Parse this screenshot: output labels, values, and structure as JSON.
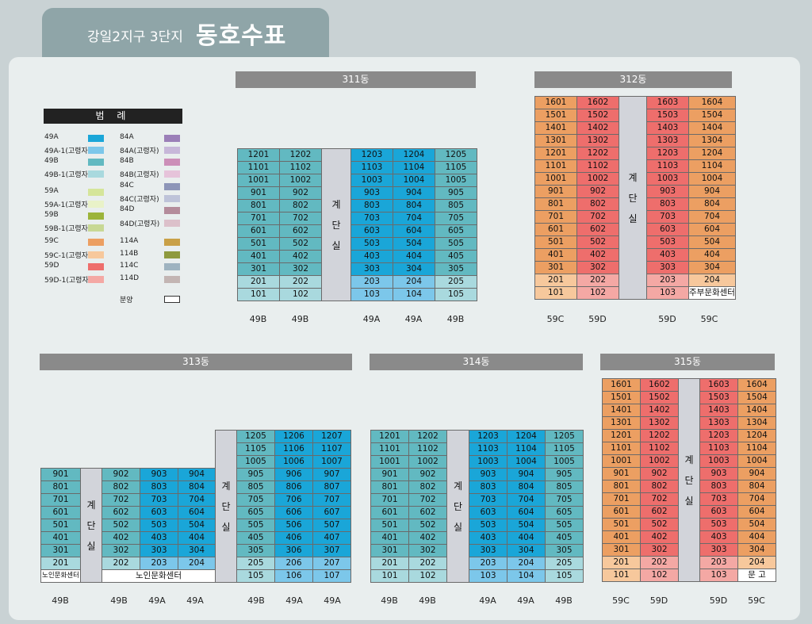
{
  "title": {
    "prefix": "강일2지구 3단지",
    "main": "동호수표"
  },
  "legend": {
    "header": "범   례",
    "left": [
      {
        "label": "49A",
        "color": "#1aa6d8"
      },
      {
        "label": "49A-1(고령자)",
        "color": "#7cc7ea"
      },
      {
        "label": "49B",
        "color": "#62b9c1"
      },
      {
        "label": "49B-1(고령자)",
        "color": "#a9d9de"
      },
      {
        "label": "59A",
        "color": "#d5e59a"
      },
      {
        "label": "59A-1(고령자)",
        "color": "#e9f2c8"
      },
      {
        "label": "59B",
        "color": "#9cb43a"
      },
      {
        "label": "59B-1(고령자)",
        "color": "#c8d894"
      },
      {
        "label": "59C",
        "color": "#ec9f62"
      },
      {
        "label": "59C-1(고령자)",
        "color": "#f7c89c"
      },
      {
        "label": "59D",
        "color": "#ee6e6c"
      },
      {
        "label": "59D-1(고령자)",
        "color": "#f4a8a4"
      }
    ],
    "right": [
      {
        "label": "84A",
        "color": "#9b7fb8"
      },
      {
        "label": "84A(고령자)",
        "color": "#c7b7d9"
      },
      {
        "label": "84B",
        "color": "#cc8fb8"
      },
      {
        "label": "84B(고령자)",
        "color": "#e6c3da"
      },
      {
        "label": "84C",
        "color": "#8d95b8"
      },
      {
        "label": "84C(고령자)",
        "color": "#bec3d9"
      },
      {
        "label": "84D",
        "color": "#b48c9b"
      },
      {
        "label": "84D(고령자)",
        "color": "#dcc0ca"
      },
      {
        "label": "114A",
        "color": "#c9a047"
      },
      {
        "label": "114B",
        "color": "#8e9a3e"
      },
      {
        "label": "114C",
        "color": "#9eb3c0"
      },
      {
        "label": "114D",
        "color": "#c3b5b3"
      },
      {
        "label": "분양",
        "color": "#ffffff"
      }
    ]
  },
  "buildings": {
    "b311": {
      "name": "311동",
      "stair_chars": [
        "계",
        "단",
        "실"
      ],
      "cols": [
        {
          "units": [
            "1201",
            "1101",
            "1001",
            "901",
            "801",
            "701",
            "601",
            "501",
            "401",
            "301",
            "201",
            "101"
          ],
          "type": "49B"
        },
        {
          "units": [
            "1202",
            "1102",
            "1002",
            "902",
            "802",
            "702",
            "602",
            "502",
            "402",
            "302",
            "202",
            "102"
          ],
          "type": "49B"
        },
        {
          "units": [
            "1203",
            "1103",
            "1003",
            "903",
            "803",
            "703",
            "603",
            "503",
            "403",
            "303",
            "203",
            "103"
          ],
          "type": "49A"
        },
        {
          "units": [
            "1204",
            "1104",
            "1004",
            "904",
            "804",
            "704",
            "604",
            "504",
            "404",
            "304",
            "204",
            "104"
          ],
          "type": "49A"
        },
        {
          "units": [
            "1205",
            "1105",
            "1005",
            "905",
            "805",
            "705",
            "605",
            "505",
            "405",
            "305",
            "205",
            "105"
          ],
          "type": "49B"
        }
      ]
    },
    "b312": {
      "name": "312동",
      "stair_chars": [
        "계",
        "단",
        "실"
      ],
      "cols": [
        {
          "units": [
            "1601",
            "1501",
            "1401",
            "1301",
            "1201",
            "1101",
            "1001",
            "901",
            "801",
            "701",
            "601",
            "501",
            "401",
            "301",
            "201",
            "101"
          ],
          "type": "59C"
        },
        {
          "units": [
            "1602",
            "1502",
            "1402",
            "1302",
            "1202",
            "1102",
            "1002",
            "902",
            "802",
            "702",
            "602",
            "502",
            "402",
            "302",
            "202",
            "102"
          ],
          "type": "59D"
        },
        {
          "units": [
            "1603",
            "1503",
            "1403",
            "1303",
            "1203",
            "1103",
            "1003",
            "903",
            "803",
            "703",
            "603",
            "503",
            "403",
            "303",
            "203",
            "103"
          ],
          "type": "59D"
        },
        {
          "units": [
            "1604",
            "1504",
            "1404",
            "1304",
            "1204",
            "1104",
            "1004",
            "904",
            "804",
            "704",
            "604",
            "504",
            "404",
            "304",
            "204",
            "주부문화센터"
          ],
          "type": "59C"
        }
      ]
    },
    "b313": {
      "name": "313동",
      "stair_chars": [
        "계",
        "단",
        "실"
      ],
      "senior_center": "노인문화센터",
      "cols": [
        {
          "units": [
            "901",
            "801",
            "701",
            "601",
            "501",
            "401",
            "301",
            "201",
            "노인문화센터"
          ],
          "type": "49B"
        },
        {
          "units": [
            "902",
            "802",
            "702",
            "602",
            "502",
            "402",
            "302",
            "202"
          ],
          "type": "49B"
        },
        {
          "units": [
            "903",
            "803",
            "703",
            "603",
            "503",
            "403",
            "303",
            "203"
          ],
          "type": "49A"
        },
        {
          "units": [
            "904",
            "804",
            "704",
            "604",
            "504",
            "404",
            "304",
            "204"
          ],
          "type": "49A"
        },
        {
          "units": [
            "1205",
            "1105",
            "1005",
            "905",
            "805",
            "705",
            "605",
            "505",
            "405",
            "305",
            "205",
            "105"
          ],
          "type": "49B"
        },
        {
          "units": [
            "1206",
            "1106",
            "1006",
            "906",
            "806",
            "706",
            "606",
            "506",
            "406",
            "306",
            "206",
            "106"
          ],
          "type": "49A"
        },
        {
          "units": [
            "1207",
            "1107",
            "1007",
            "907",
            "807",
            "707",
            "607",
            "507",
            "407",
            "307",
            "207",
            "107"
          ],
          "type": "49A"
        }
      ]
    },
    "b314": {
      "name": "314동",
      "stair_chars": [
        "계",
        "단",
        "실"
      ],
      "cols": [
        {
          "units": [
            "1201",
            "1101",
            "1001",
            "901",
            "801",
            "701",
            "601",
            "501",
            "401",
            "301",
            "201",
            "101"
          ],
          "type": "49B"
        },
        {
          "units": [
            "1202",
            "1102",
            "1002",
            "902",
            "802",
            "702",
            "602",
            "502",
            "402",
            "302",
            "202",
            "102"
          ],
          "type": "49B"
        },
        {
          "units": [
            "1203",
            "1103",
            "1003",
            "903",
            "803",
            "703",
            "603",
            "503",
            "403",
            "303",
            "203",
            "103"
          ],
          "type": "49A"
        },
        {
          "units": [
            "1204",
            "1104",
            "1004",
            "904",
            "804",
            "704",
            "604",
            "504",
            "404",
            "304",
            "204",
            "104"
          ],
          "type": "49A"
        },
        {
          "units": [
            "1205",
            "1105",
            "1005",
            "905",
            "805",
            "705",
            "605",
            "505",
            "405",
            "305",
            "205",
            "105"
          ],
          "type": "49B"
        }
      ]
    },
    "b315": {
      "name": "315동",
      "stair_chars": [
        "계",
        "단",
        "실"
      ],
      "cols": [
        {
          "units": [
            "1601",
            "1501",
            "1401",
            "1301",
            "1201",
            "1101",
            "1001",
            "901",
            "801",
            "701",
            "601",
            "501",
            "401",
            "301",
            "201",
            "101"
          ],
          "type": "59C"
        },
        {
          "units": [
            "1602",
            "1502",
            "1402",
            "1302",
            "1202",
            "1102",
            "1002",
            "902",
            "802",
            "702",
            "602",
            "502",
            "402",
            "302",
            "202",
            "102"
          ],
          "type": "59D"
        },
        {
          "units": [
            "1603",
            "1503",
            "1403",
            "1303",
            "1203",
            "1103",
            "1003",
            "903",
            "803",
            "703",
            "603",
            "503",
            "403",
            "303",
            "203",
            "103"
          ],
          "type": "59D"
        },
        {
          "units": [
            "1604",
            "1504",
            "1404",
            "1304",
            "1204",
            "1104",
            "1004",
            "904",
            "804",
            "704",
            "604",
            "504",
            "404",
            "304",
            "204",
            "문 고"
          ],
          "type": "59C"
        }
      ]
    }
  }
}
